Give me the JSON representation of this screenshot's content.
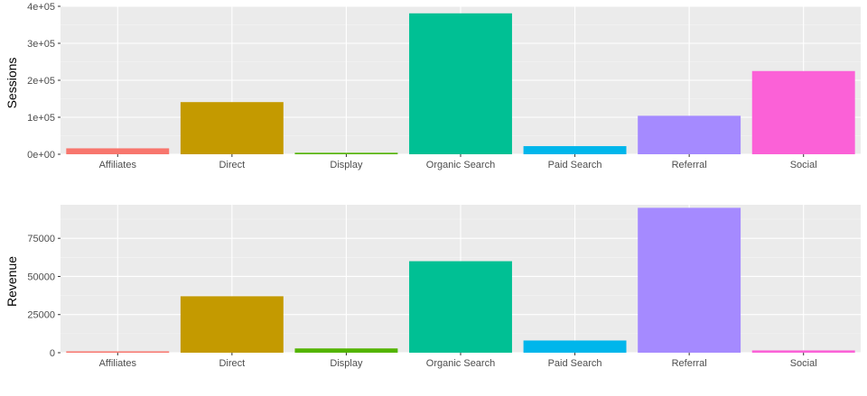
{
  "chart_data": [
    {
      "type": "bar",
      "title": "",
      "xlabel": "",
      "ylabel": "Sessions",
      "categories": [
        "Affiliates",
        "Direct",
        "Display",
        "Organic Search",
        "Paid Search",
        "Referral",
        "Social"
      ],
      "values": [
        16000,
        141000,
        4000,
        381000,
        22000,
        104000,
        225000
      ],
      "colors": [
        "#F8766D",
        "#C49A00",
        "#53B400",
        "#00C094",
        "#00B6EB",
        "#A58AFF",
        "#FB61D7"
      ],
      "ylim": [
        0,
        400000
      ],
      "yticks": [
        0,
        100000,
        200000,
        300000,
        400000
      ],
      "ytick_labels": [
        "0e+00",
        "1e+05",
        "2e+05",
        "3e+05",
        "4e+05"
      ],
      "grid": true,
      "legend": "none"
    },
    {
      "type": "bar",
      "title": "",
      "xlabel": "",
      "ylabel": "Revenue",
      "categories": [
        "Affiliates",
        "Direct",
        "Display",
        "Organic Search",
        "Paid Search",
        "Referral",
        "Social"
      ],
      "values": [
        500,
        37000,
        2800,
        60000,
        8000,
        95000,
        1500
      ],
      "colors": [
        "#F8766D",
        "#C49A00",
        "#53B400",
        "#00C094",
        "#00B6EB",
        "#A58AFF",
        "#FB61D7"
      ],
      "ylim": [
        0,
        97000
      ],
      "yticks": [
        0,
        25000,
        50000,
        75000
      ],
      "ytick_labels": [
        "0",
        "25000",
        "50000",
        "75000"
      ],
      "grid": true,
      "legend": "none"
    }
  ]
}
